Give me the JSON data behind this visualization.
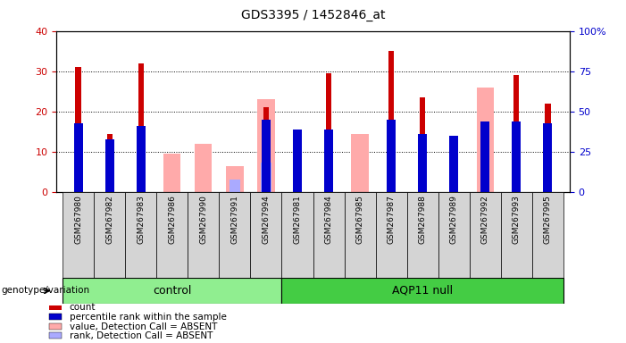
{
  "title": "GDS3395 / 1452846_at",
  "samples": [
    "GSM267980",
    "GSM267982",
    "GSM267983",
    "GSM267986",
    "GSM267990",
    "GSM267991",
    "GSM267994",
    "GSM267981",
    "GSM267984",
    "GSM267985",
    "GSM267987",
    "GSM267988",
    "GSM267989",
    "GSM267992",
    "GSM267993",
    "GSM267995"
  ],
  "groups": [
    "control",
    "control",
    "control",
    "control",
    "control",
    "control",
    "control",
    "AQP11 null",
    "AQP11 null",
    "AQP11 null",
    "AQP11 null",
    "AQP11 null",
    "AQP11 null",
    "AQP11 null",
    "AQP11 null",
    "AQP11 null"
  ],
  "count_values": [
    31,
    14.5,
    32,
    0,
    0,
    0,
    21,
    0,
    29.5,
    0,
    35,
    23.5,
    14,
    0,
    29,
    22
  ],
  "percentile_values": [
    42.5,
    32.5,
    41.25,
    0,
    0,
    0,
    45,
    38.75,
    38.75,
    0,
    45,
    36.25,
    35,
    43.75,
    43.75,
    42.5
  ],
  "absent_value_values": [
    0,
    0,
    0,
    9.5,
    12,
    6.5,
    23,
    0,
    0,
    14.5,
    0,
    0,
    0,
    26,
    0,
    0
  ],
  "absent_rank_values": [
    0,
    0,
    0,
    0,
    0,
    8,
    18.5,
    0,
    0,
    0,
    0,
    0,
    0,
    0,
    0,
    0
  ],
  "count_color": "#cc0000",
  "percentile_color": "#0000cc",
  "absent_value_color": "#ffaaaa",
  "absent_rank_color": "#aaaaff",
  "group_colors": {
    "control": "#90ee90",
    "AQP11 null": "#44cc44"
  },
  "ylim_left": [
    0,
    40
  ],
  "ylim_right": [
    0,
    100
  ],
  "yticks_left": [
    0,
    10,
    20,
    30,
    40
  ],
  "yticks_right": [
    0,
    25,
    50,
    75,
    100
  ],
  "ylabel_right_labels": [
    "0",
    "25",
    "50",
    "75",
    "100%"
  ],
  "legend_items": [
    {
      "label": "count",
      "color": "#cc0000"
    },
    {
      "label": "percentile rank within the sample",
      "color": "#0000cc"
    },
    {
      "label": "value, Detection Call = ABSENT",
      "color": "#ffaaaa"
    },
    {
      "label": "rank, Detection Call = ABSENT",
      "color": "#aaaaff"
    }
  ]
}
